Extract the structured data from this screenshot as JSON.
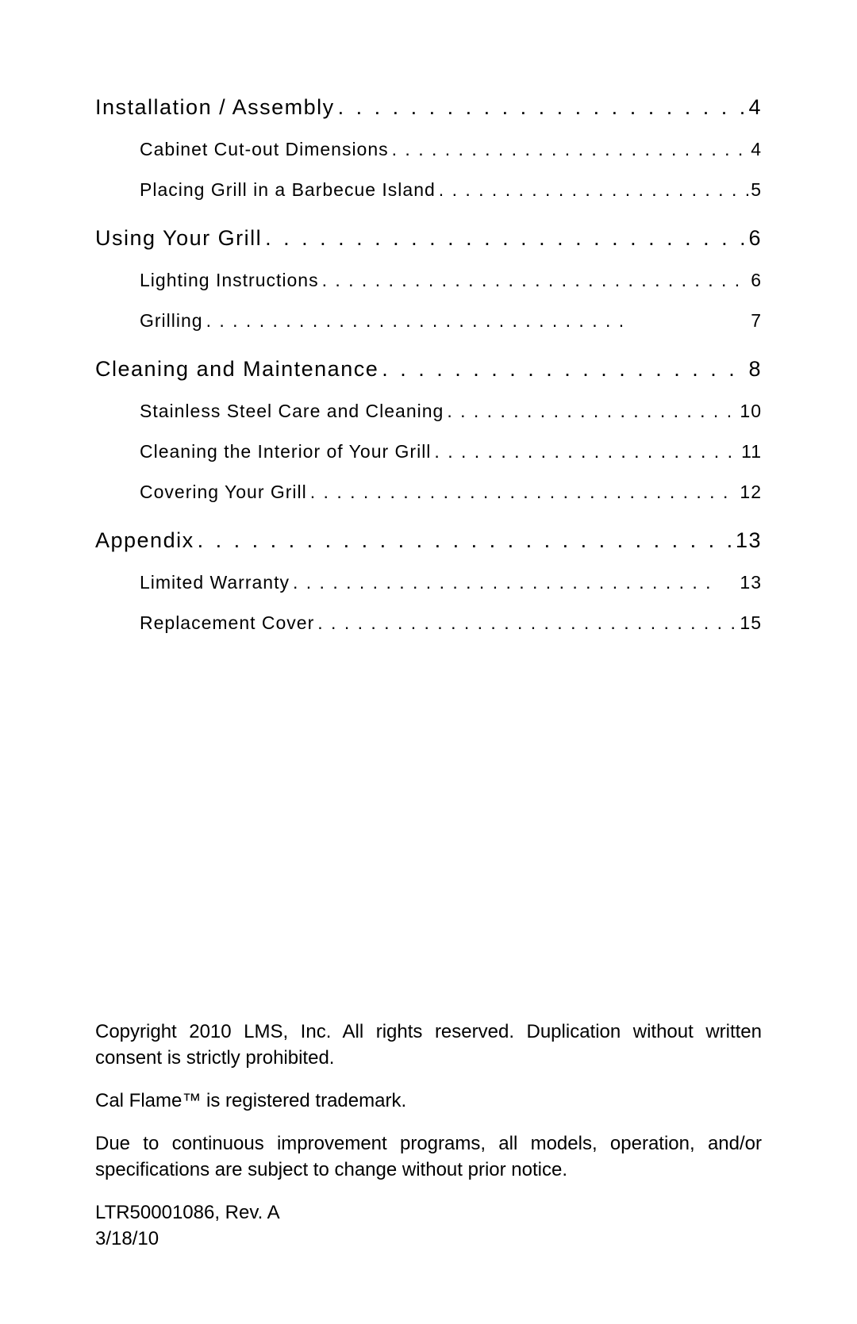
{
  "toc": {
    "sections": [
      {
        "title": "Installation / Assembly",
        "page": "4",
        "subsections": [
          {
            "title": "Cabinet Cut-out Dimensions",
            "page": "4"
          },
          {
            "title": "Placing Grill in a Barbecue Island",
            "page": "5"
          }
        ]
      },
      {
        "title": "Using Your Grill",
        "page": "6",
        "subsections": [
          {
            "title": "Lighting Instructions",
            "page": "6"
          },
          {
            "title": "Grilling",
            "page": "7"
          }
        ]
      },
      {
        "title": "Cleaning and Maintenance",
        "page": "8",
        "subsections": [
          {
            "title": "Stainless Steel Care and Cleaning",
            "page": "10"
          },
          {
            "title": "Cleaning the Interior of Your Grill",
            "page": "11"
          },
          {
            "title": "Covering Your Grill",
            "page": "12"
          }
        ]
      },
      {
        "title": "Appendix",
        "page": "13",
        "subsections": [
          {
            "title": "Limited Warranty",
            "page": "13"
          },
          {
            "title": "Replacement Cover",
            "page": "15"
          }
        ]
      }
    ]
  },
  "footer": {
    "copyright": "Copyright 2010 LMS, Inc. All rights reserved. Duplication without written consent is strictly prohibited.",
    "trademark": "Cal Flame™ is registered trademark.",
    "notice": "Due to continuous improvement programs, all models, operation, and/or specifications are subject to change without prior notice.",
    "docnum": "LTR50001086, Rev. A",
    "date": "3/18/10"
  }
}
